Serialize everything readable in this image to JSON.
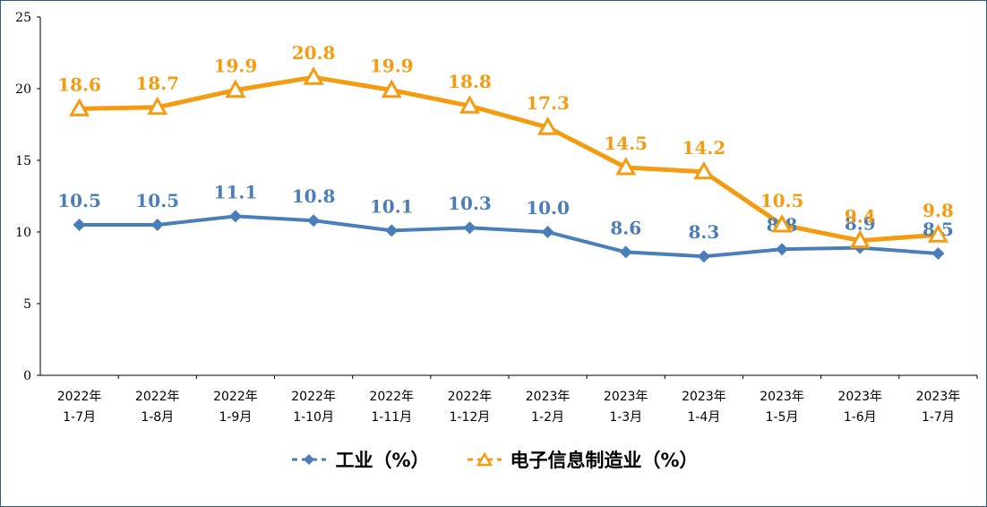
{
  "chart_data": {
    "type": "line",
    "categories": [
      [
        "2022年",
        "1-7月"
      ],
      [
        "2022年",
        "1-8月"
      ],
      [
        "2022年",
        "1-9月"
      ],
      [
        "2022年",
        "1-10月"
      ],
      [
        "2022年",
        "1-11月"
      ],
      [
        "2022年",
        "1-12月"
      ],
      [
        "2023年",
        "1-2月"
      ],
      [
        "2023年",
        "1-3月"
      ],
      [
        "2023年",
        "1-4月"
      ],
      [
        "2023年",
        "1-5月"
      ],
      [
        "2023年",
        "1-6月"
      ],
      [
        "2023年",
        "1-7月"
      ]
    ],
    "series": [
      {
        "name": "工业（%）",
        "color": "#4a7ebb",
        "marker": "diamond",
        "values": [
          10.5,
          10.5,
          11.1,
          10.8,
          10.1,
          10.3,
          10.0,
          8.6,
          8.3,
          8.8,
          8.9,
          8.5
        ]
      },
      {
        "name": "电子信息制造业（%）",
        "color": "#f39c12",
        "marker": "triangle",
        "values": [
          18.6,
          18.7,
          19.9,
          20.8,
          19.9,
          18.8,
          17.3,
          14.5,
          14.2,
          10.5,
          9.4,
          9.8
        ]
      }
    ],
    "ylim": [
      0,
      25
    ],
    "yticks": [
      0,
      5,
      10,
      15,
      20,
      25
    ],
    "grid": false,
    "legend": "bottom"
  }
}
